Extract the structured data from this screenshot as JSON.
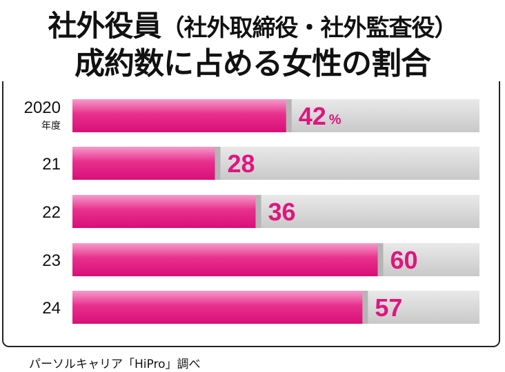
{
  "title": {
    "line1_main": "社外役員",
    "line1_paren": "（社外取締役・社外監査役）",
    "line2": "成約数に占める女性の割合"
  },
  "source": "パーソルキャリア「HiPro」調べ",
  "colors": {
    "bar": "#e0157f",
    "bar_light": "#f27ab8",
    "track": "#d3d3d3",
    "track_dark": "#b5b5b5",
    "label": "#e0157f"
  },
  "chart_data": {
    "type": "bar",
    "orientation": "horizontal",
    "categories": [
      "2020",
      "21",
      "22",
      "23",
      "24"
    ],
    "category_sub": [
      "年度",
      "",
      "",
      "",
      ""
    ],
    "values": [
      42,
      28,
      36,
      60,
      57
    ],
    "value_unit": "%",
    "xlim": [
      0,
      100
    ],
    "grid": false,
    "legend": "none"
  }
}
